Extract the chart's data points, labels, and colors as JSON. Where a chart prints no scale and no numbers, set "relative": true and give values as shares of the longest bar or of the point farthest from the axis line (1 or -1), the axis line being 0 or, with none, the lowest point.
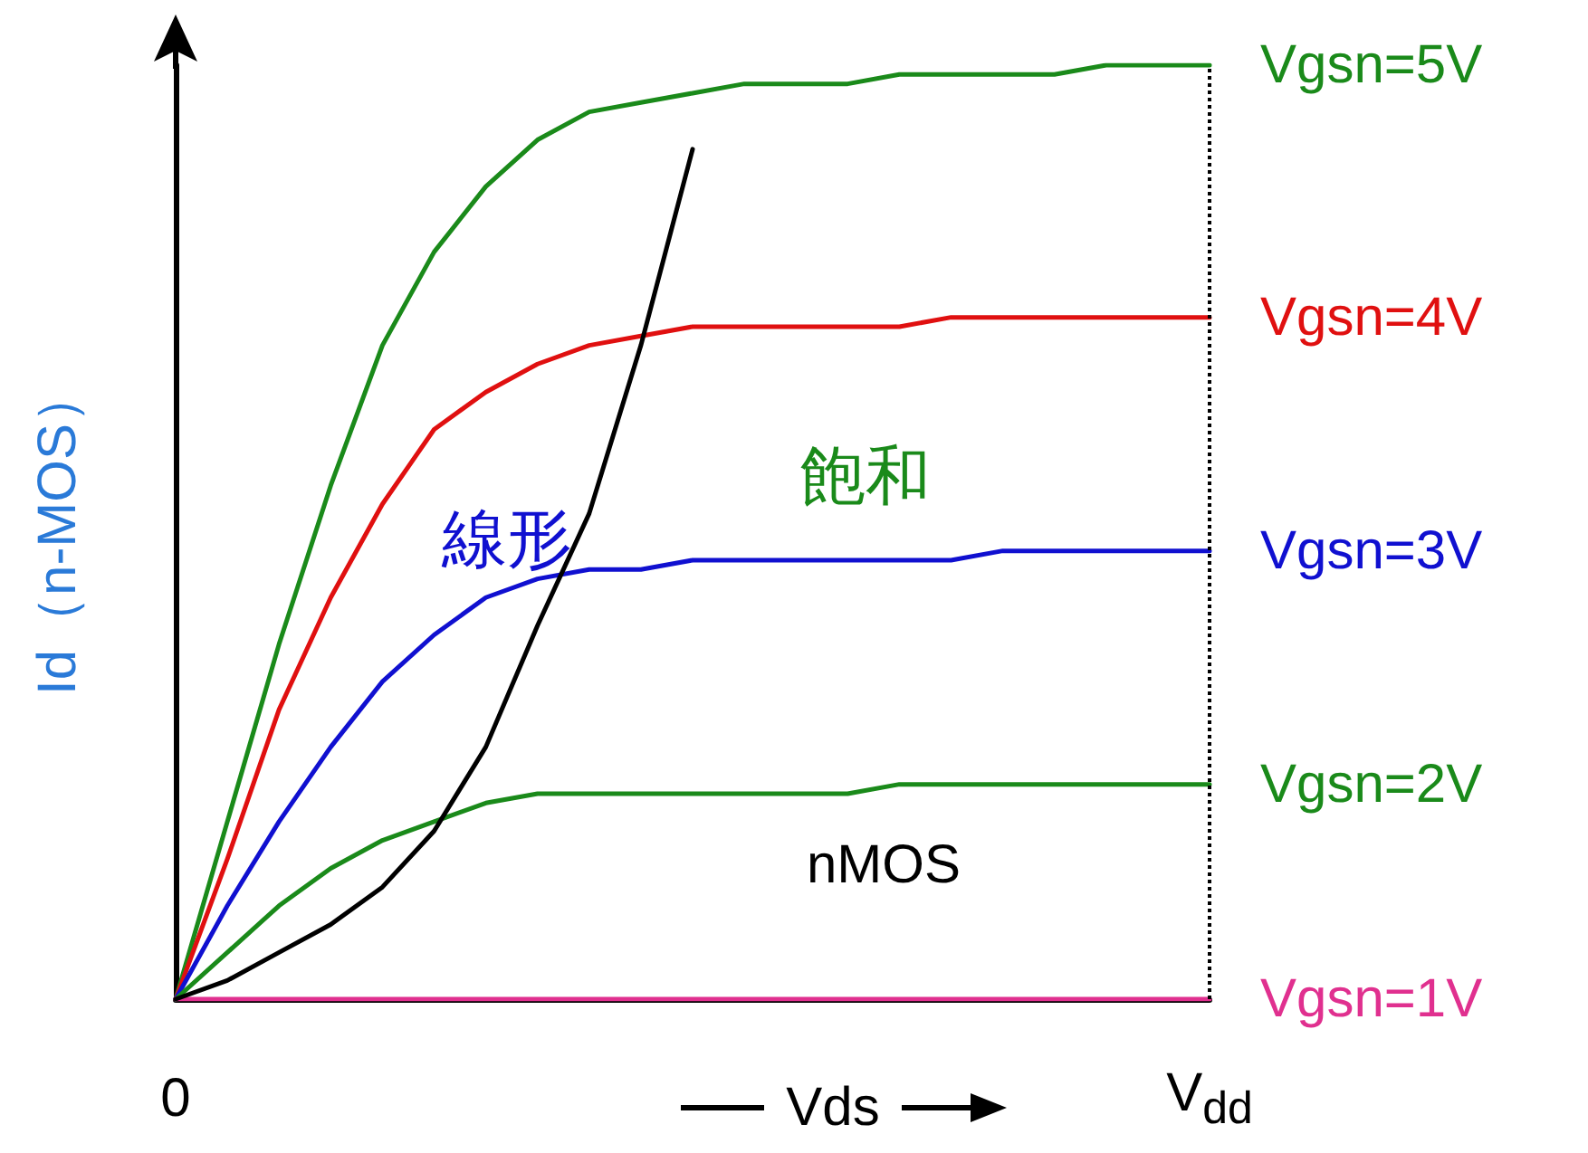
{
  "chart_data": {
    "type": "line",
    "relative": true,
    "ylabel": "Id（n-MOS）",
    "xlabel": "Vds",
    "grid": false,
    "legend": false,
    "marker": "none",
    "line_style": "solid",
    "categories": [
      "0",
      null,
      null,
      null,
      null,
      null,
      null,
      null,
      null,
      null,
      null,
      null,
      null,
      null,
      null,
      null,
      null,
      null,
      null,
      null,
      "V$_{dd}$"
    ],
    "series": [
      {
        "name": "Vgsn=5V",
        "color": "#1a8a1a",
        "values": [
          0,
          0.19,
          0.38,
          0.55,
          0.7,
          0.8,
          0.87,
          0.92,
          0.95,
          0.96,
          0.97,
          0.98,
          0.98,
          0.98,
          0.99,
          0.99,
          0.99,
          0.99,
          1.0,
          1.0,
          1.0
        ]
      },
      {
        "name": "Vgsn=4V",
        "color": "#e01010",
        "values": [
          0,
          0.15,
          0.31,
          0.43,
          0.53,
          0.61,
          0.65,
          0.68,
          0.7,
          0.71,
          0.72,
          0.72,
          0.72,
          0.72,
          0.72,
          0.73,
          0.73,
          0.73,
          0.73,
          0.73,
          0.73
        ]
      },
      {
        "name": "Vgsn=3V",
        "color": "#1010d0",
        "values": [
          0,
          0.1,
          0.19,
          0.27,
          0.34,
          0.39,
          0.43,
          0.45,
          0.46,
          0.46,
          0.47,
          0.47,
          0.47,
          0.47,
          0.47,
          0.47,
          0.48,
          0.48,
          0.48,
          0.48,
          0.48
        ]
      },
      {
        "name": "Vgsn=2V",
        "color": "#1a8a1a",
        "values": [
          0,
          0.05,
          0.1,
          0.14,
          0.17,
          0.19,
          0.21,
          0.22,
          0.22,
          0.22,
          0.22,
          0.22,
          0.22,
          0.22,
          0.23,
          0.23,
          0.23,
          0.23,
          0.23,
          0.23,
          0.23
        ]
      },
      {
        "name": "Vgsn=1V",
        "color": "#e0308f",
        "values": [
          0,
          0,
          0,
          0,
          0,
          0,
          0,
          0,
          0,
          0,
          0,
          0,
          0,
          0,
          0,
          0,
          0,
          0,
          0,
          0,
          0
        ]
      },
      {
        "color": "#000000",
        "values": [
          0,
          0.02,
          0.05,
          0.08,
          0.12,
          0.18,
          0.27,
          0.4,
          0.52,
          0.7,
          0.91,
          null,
          null,
          null,
          null,
          null,
          null,
          null,
          null,
          null,
          null
        ]
      }
    ],
    "ref_lines": [
      {
        "axis": "x",
        "value": "V$_{dd}$",
        "line_style": "dotted",
        "color": "#000000"
      }
    ],
    "annotations": [
      "線形",
      "飽和",
      "nMOS"
    ]
  }
}
